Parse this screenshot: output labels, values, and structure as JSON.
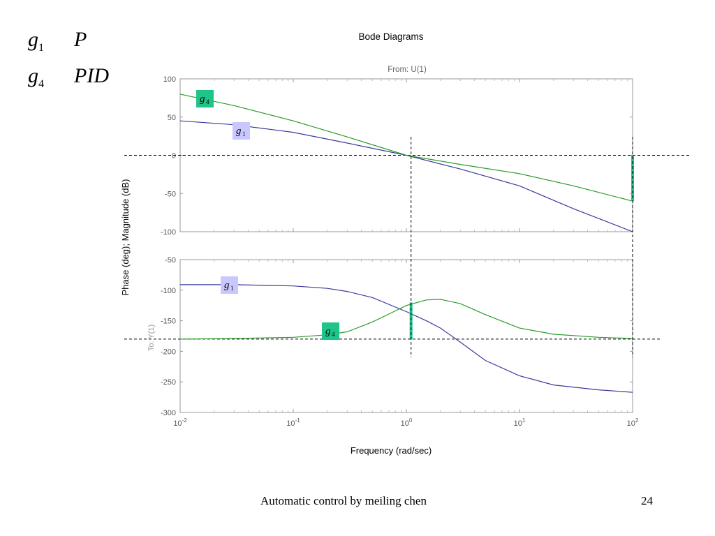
{
  "legend": [
    {
      "symbol": "g",
      "sub": "1",
      "desc": "P"
    },
    {
      "symbol": "g",
      "sub": "4",
      "desc": "PID"
    }
  ],
  "footer": {
    "text": "Automatic control by meiling chen",
    "page": "24"
  },
  "colors": {
    "g1": "#3a3a9e",
    "g4": "#2a9a2a",
    "marker": "#1fc489",
    "g1_tag": "#c8c8ff",
    "g4_tag": "#1fc489"
  },
  "chart_data": {
    "type": "line",
    "title": "Bode Diagrams",
    "subtitle": "From: U(1)",
    "xlabel": "Frequency (rad/sec)",
    "ylabel": "Phase (deg); Magnitude (dB)",
    "ylabel2": "To: Y(1)",
    "xscale": "log",
    "xlim": [
      0.01,
      100
    ],
    "x_ticks": [
      0.01,
      0.1,
      1,
      10,
      100
    ],
    "x_tick_labels": [
      {
        "base": "10",
        "exp": "-2"
      },
      {
        "base": "10",
        "exp": "-1"
      },
      {
        "base": "10",
        "exp": "0"
      },
      {
        "base": "10",
        "exp": "1"
      },
      {
        "base": "10",
        "exp": "2"
      }
    ],
    "panels": [
      {
        "name": "magnitude",
        "ylim": [
          -100,
          100
        ],
        "y_ticks": [
          100,
          50,
          0,
          -50,
          -100
        ],
        "series": [
          {
            "label_symbol": "g",
            "label_sub": "1",
            "x": [
              0.01,
              0.03,
              0.1,
              0.3,
              1,
              3,
              10,
              30,
              100
            ],
            "y": [
              45,
              40,
              30,
              16,
              0,
              -18,
              -40,
              -70,
              -100
            ]
          },
          {
            "label_symbol": "g",
            "label_sub": "4",
            "x": [
              0.01,
              0.03,
              0.1,
              0.3,
              1,
              3,
              10,
              30,
              100
            ],
            "y": [
              80,
              65,
              45,
              24,
              0,
              -12,
              -24,
              -40,
              -60
            ]
          }
        ],
        "ref_lines": [
          {
            "axis": "y",
            "value": 0
          }
        ],
        "markers": [
          {
            "x": 100,
            "y_from": 0,
            "y_to": -60
          }
        ]
      },
      {
        "name": "phase",
        "ylim": [
          -300,
          -50
        ],
        "y_ticks": [
          -50,
          -100,
          -150,
          -200,
          -250,
          -300
        ],
        "series": [
          {
            "label_symbol": "g",
            "label_sub": "1",
            "x": [
              0.01,
              0.03,
              0.1,
              0.2,
              0.3,
              0.5,
              1,
              1.5,
              2,
              3,
              5,
              10,
              20,
              50,
              100
            ],
            "y": [
              -91,
              -91,
              -93,
              -97,
              -102,
              -112,
              -135,
              -150,
              -162,
              -185,
              -215,
              -240,
              -255,
              -263,
              -267
            ]
          },
          {
            "label_symbol": "g",
            "label_sub": "4",
            "x": [
              0.01,
              0.03,
              0.1,
              0.2,
              0.3,
              0.5,
              0.7,
              1,
              1.5,
              2,
              3,
              5,
              10,
              20,
              50,
              100
            ],
            "y": [
              -180,
              -179,
              -177,
              -173,
              -168,
              -152,
              -139,
              -125,
              -116,
              -115,
              -122,
              -140,
              -162,
              -172,
              -177,
              -179
            ]
          }
        ],
        "ref_lines": [
          {
            "axis": "y",
            "value": -180
          }
        ],
        "markers": [
          {
            "x": 1.1,
            "y_from": -180,
            "y_to": -120
          }
        ]
      }
    ],
    "crossover_lines": [
      1.1,
      100
    ]
  }
}
